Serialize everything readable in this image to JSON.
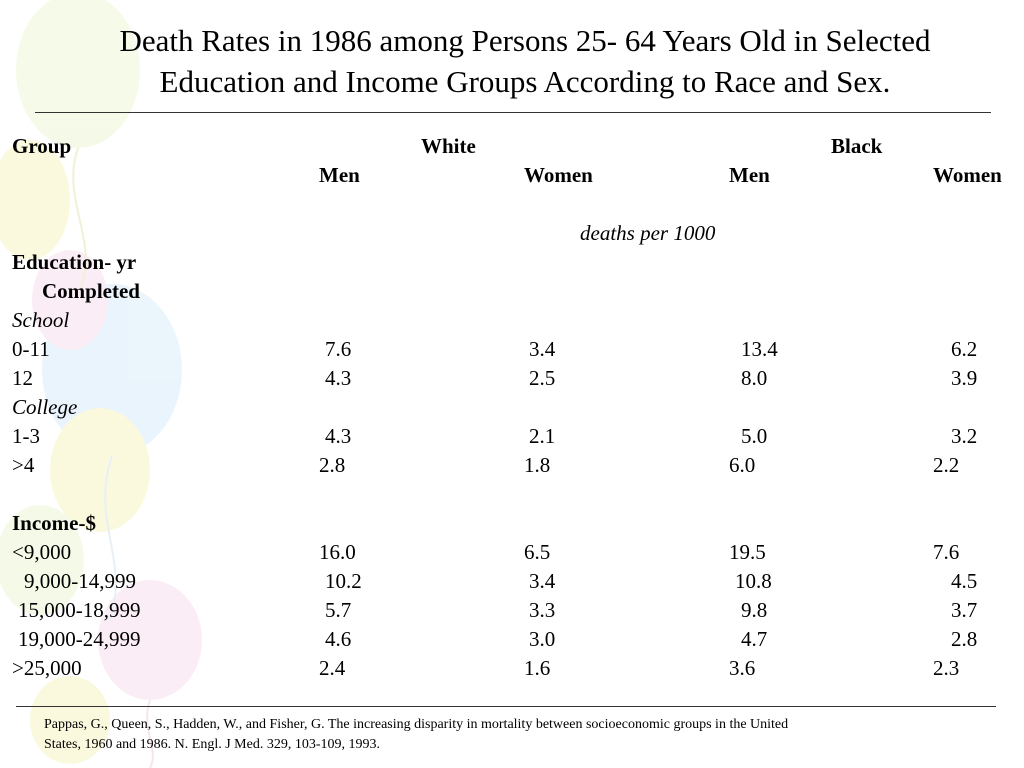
{
  "slide": {
    "title_line1": "Death Rates in 1986 among Persons 25- 64 Years Old in Selected",
    "title_line2": "Education and Income Groups According to Race and Sex."
  },
  "table": {
    "group_header": "Group",
    "white_header": "White",
    "black_header": "Black",
    "white_men": "Men",
    "white_women": "Women",
    "black_men": "Men",
    "black_women": "Women",
    "units": "deaths per 1000",
    "education_heading_line1": "Education- yr",
    "education_heading_line2": "Completed",
    "school_label": "School",
    "college_label": "College",
    "income_heading": "Income-$",
    "rows": [
      {
        "group": "0-11",
        "white_men": "7.6",
        "white_women": "3.4",
        "black_men": "13.4",
        "black_women": "6.2"
      },
      {
        "group": "12",
        "white_men": "4.3",
        "white_women": "2.5",
        "black_men": "8.0",
        "black_women": "3.9"
      },
      {
        "group": "1-3",
        "white_men": "4.3",
        "white_women": "2.1",
        "black_men": "5.0",
        "black_women": "3.2"
      },
      {
        "group": ">4",
        "white_men": "2.8",
        "white_women": "1.8",
        "black_men": "6.0",
        "black_women": "2.2"
      },
      {
        "group": "<9,000",
        "white_men": "16.0",
        "white_women": "6.5",
        "black_men": "19.5",
        "black_women": "7.6"
      },
      {
        "group": "9,000-14,999",
        "white_men": "10.2",
        "white_women": "3.4",
        "black_men": "10.8",
        "black_women": "4.5"
      },
      {
        "group": "15,000-18,999",
        "white_men": "5.7",
        "white_women": "3.3",
        "black_men": "9.8",
        "black_women": "3.7"
      },
      {
        "group": "19,000-24,999",
        "white_men": "4.6",
        "white_women": "3.0",
        "black_men": "4.7",
        "black_women": "2.8"
      },
      {
        "group": ">25,000",
        "white_men": "2.4",
        "white_women": "1.6",
        "black_men": "3.6",
        "black_women": "2.3"
      }
    ]
  },
  "footnote": {
    "line1": "Pappas, G., Queen, S., Hadden, W., and Fisher, G.  The increasing disparity in mortality between socioeconomic groups in the United",
    "line2": "States, 1960 and 1986.  N. Engl. J Med. 329, 103-109, 1993."
  },
  "colors": {
    "background": "#ffffff",
    "text": "#000000",
    "balloon_yellow": "#f7f3a0",
    "balloon_blue": "#cfe6f7",
    "balloon_pink": "#f6d3ea",
    "balloon_green": "#e3f2c7"
  }
}
